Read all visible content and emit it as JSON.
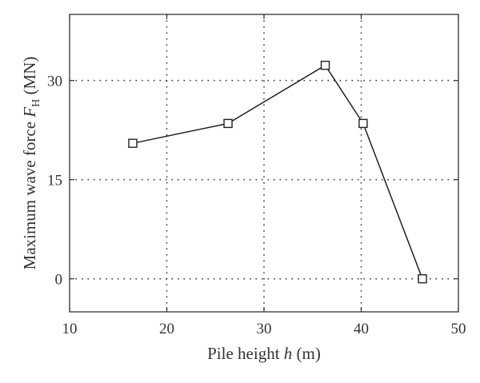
{
  "chart_data": {
    "type": "line",
    "title": "",
    "xlabel": {
      "prefix": "Pile height ",
      "var": "h",
      "suffix": " (m)"
    },
    "ylabel": {
      "prefix": "Maximum wave force ",
      "var": "F",
      "sub": "H",
      "suffix": " (MN)"
    },
    "xlim": [
      10,
      50
    ],
    "ylim": [
      -5,
      40
    ],
    "xticks": [
      10,
      20,
      30,
      40,
      50
    ],
    "yticks": [
      0,
      15,
      30
    ],
    "grid": true,
    "grid_style": "dotted",
    "marker": "square",
    "series": [
      {
        "x": [
          16.5,
          26.3,
          36.3,
          40.2,
          46.3
        ],
        "values": [
          20.5,
          23.5,
          32.3,
          23.5,
          0
        ]
      }
    ]
  }
}
